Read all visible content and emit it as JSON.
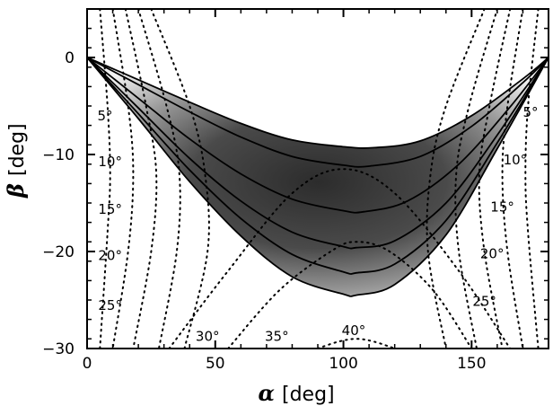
{
  "chart_data": {
    "type": "line",
    "xlabel_symbol": "α",
    "xlabel_unit": "[deg]",
    "ylabel_symbol": "β",
    "ylabel_unit": "[deg]",
    "xlim": [
      0,
      180
    ],
    "ylim": [
      -30,
      5
    ],
    "xticks": [
      0,
      50,
      100,
      150
    ],
    "yticks": [
      0,
      -10,
      -20,
      -30
    ],
    "grid": false,
    "density_map": {
      "description_colors": {
        "high": "#2a2a2a",
        "low": "#ffffff"
      }
    },
    "solid_contours": [
      {
        "name": "",
        "x": [
          0,
          20,
          40,
          60,
          80,
          100,
          112,
          130,
          150,
          170,
          180
        ],
        "y": [
          0,
          -2.3,
          -4.6,
          -6.8,
          -8.5,
          -9.2,
          -9.3,
          -8.6,
          -6.0,
          -2.2,
          0
        ]
      },
      {
        "name": "",
        "x": [
          0,
          20,
          40,
          60,
          80,
          100,
          110,
          130,
          150,
          170,
          180
        ],
        "y": [
          0,
          -2.8,
          -5.6,
          -8.2,
          -10.2,
          -11.1,
          -11.2,
          -10.2,
          -7.1,
          -2.6,
          0
        ]
      },
      {
        "name": "",
        "x": [
          0,
          20,
          40,
          60,
          80,
          100,
          108,
          125,
          145,
          165,
          180
        ],
        "y": [
          0,
          -4.2,
          -8.4,
          -12.0,
          -14.6,
          -15.8,
          -15.9,
          -14.8,
          -11.0,
          -5.1,
          0
        ]
      },
      {
        "name": "",
        "x": [
          0,
          20,
          40,
          60,
          80,
          100,
          105,
          120,
          140,
          160,
          180
        ],
        "y": [
          0,
          -5.2,
          -10.4,
          -14.8,
          -18.0,
          -19.5,
          -19.6,
          -18.9,
          -15.0,
          -8.0,
          0
        ]
      },
      {
        "name": "",
        "x": [
          0,
          20,
          40,
          60,
          80,
          100,
          105,
          120,
          140,
          160,
          180
        ],
        "y": [
          0,
          -5.8,
          -11.6,
          -16.6,
          -20.3,
          -22.1,
          -22.2,
          -21.3,
          -16.8,
          -8.8,
          0
        ]
      },
      {
        "name": "",
        "x": [
          0,
          20,
          40,
          60,
          80,
          100,
          105,
          120,
          140,
          160,
          180
        ],
        "y": [
          0,
          -6.3,
          -12.8,
          -18.4,
          -22.6,
          -24.4,
          -24.5,
          -23.4,
          -18.3,
          -9.4,
          0
        ]
      }
    ],
    "dotted_contours": [
      {
        "label": "5°",
        "side": "left",
        "x": [
          5,
          8,
          9,
          8,
          5
        ],
        "y": [
          5,
          -5,
          -12,
          -18,
          -30
        ]
      },
      {
        "label": "10°",
        "side": "left",
        "x": [
          10,
          16,
          18,
          16,
          10
        ],
        "y": [
          5,
          -5,
          -12,
          -20,
          -30
        ]
      },
      {
        "label": "15°",
        "side": "left",
        "x": [
          15,
          23,
          27,
          25,
          18
        ],
        "y": [
          5,
          -5,
          -12,
          -20,
          -30
        ]
      },
      {
        "label": "20°",
        "side": "left",
        "x": [
          20,
          31,
          36,
          35,
          28
        ],
        "y": [
          5,
          -5,
          -12,
          -20,
          -30
        ]
      },
      {
        "label": "25°",
        "side": "left",
        "x": [
          25,
          40,
          46,
          47,
          38
        ],
        "y": [
          5,
          -5,
          -12,
          -20,
          -30
        ]
      },
      {
        "label": "5°",
        "side": "right",
        "x": [
          176,
          172,
          171,
          172,
          176
        ],
        "y": [
          5,
          -5,
          -12,
          -18,
          -30
        ]
      },
      {
        "label": "10°",
        "side": "right",
        "x": [
          170,
          164,
          162,
          164,
          170
        ],
        "y": [
          5,
          -5,
          -12,
          -20,
          -30
        ]
      },
      {
        "label": "15°",
        "side": "right",
        "x": [
          165,
          157,
          153,
          155,
          162
        ],
        "y": [
          5,
          -5,
          -12,
          -20,
          -30
        ]
      },
      {
        "label": "20°",
        "side": "right",
        "x": [
          160,
          149,
          144,
          145,
          152
        ],
        "y": [
          5,
          -5,
          -12,
          -20,
          -30
        ]
      },
      {
        "label": "25°",
        "side": "right",
        "x": [
          155,
          140,
          134,
          133,
          140
        ],
        "y": [
          5,
          -5,
          -12,
          -20,
          -30
        ]
      },
      {
        "label": "30°",
        "side": "center",
        "x": [
          32,
          55,
          80,
          100,
          120,
          145,
          165
        ],
        "y": [
          -30,
          -22,
          -14,
          -11.5,
          -14,
          -22,
          -30
        ]
      },
      {
        "label": "35°",
        "side": "center",
        "x": [
          55,
          75,
          95,
          105,
          118,
          135,
          150
        ],
        "y": [
          -30,
          -24,
          -20,
          -19,
          -20,
          -24,
          -30
        ]
      },
      {
        "label": "40°",
        "side": "center",
        "x": [
          90,
          98,
          105,
          112,
          120
        ],
        "y": [
          -30,
          -29.3,
          -29.0,
          -29.3,
          -30
        ]
      }
    ],
    "contour_label_positions": [
      {
        "text": "5°",
        "x": 7,
        "y": -6.5
      },
      {
        "text": "10°",
        "x": 9,
        "y": -11.2
      },
      {
        "text": "15°",
        "x": 9,
        "y": -16.1
      },
      {
        "text": "20°",
        "x": 9,
        "y": -20.9
      },
      {
        "text": "25°",
        "x": 9,
        "y": -26.0
      },
      {
        "text": "5°",
        "x": 173,
        "y": -6.1
      },
      {
        "text": "10°",
        "x": 167,
        "y": -11.0
      },
      {
        "text": "15°",
        "x": 162,
        "y": -15.9
      },
      {
        "text": "20°",
        "x": 158,
        "y": -20.7
      },
      {
        "text": "25°",
        "x": 155,
        "y": -25.6
      },
      {
        "text": "30°",
        "x": 47,
        "y": -29.2
      },
      {
        "text": "35°",
        "x": 74,
        "y": -29.2
      },
      {
        "text": "40°",
        "x": 104,
        "y": -28.6
      }
    ]
  }
}
